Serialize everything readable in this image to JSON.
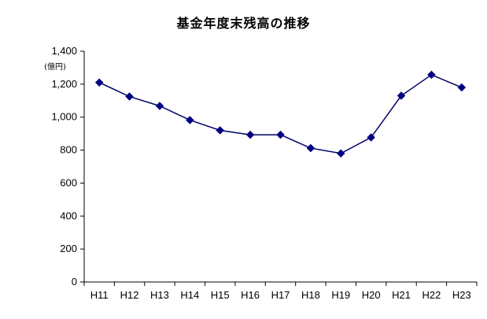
{
  "chart_data": {
    "type": "line",
    "title": "基金年度末残高の推移",
    "y_unit": "(億円)",
    "categories": [
      "H11",
      "H12",
      "H13",
      "H14",
      "H15",
      "H16",
      "H17",
      "H18",
      "H19",
      "H20",
      "H21",
      "H22",
      "H23"
    ],
    "series": [
      {
        "values": [
          1210,
          1125,
          1068,
          982,
          920,
          893,
          893,
          812,
          780,
          877,
          1130,
          1257,
          1180
        ]
      }
    ],
    "ylim": [
      0,
      1400
    ],
    "yticks": [
      0,
      200,
      400,
      600,
      800,
      1000,
      1200,
      1400
    ],
    "ytick_labels": [
      "0",
      "200",
      "400",
      "600",
      "800",
      "1,000",
      "1,200",
      "1,400"
    ],
    "grid": false,
    "colors": {
      "line": "#000066",
      "marker": "#000080",
      "axis": "#000000"
    }
  }
}
